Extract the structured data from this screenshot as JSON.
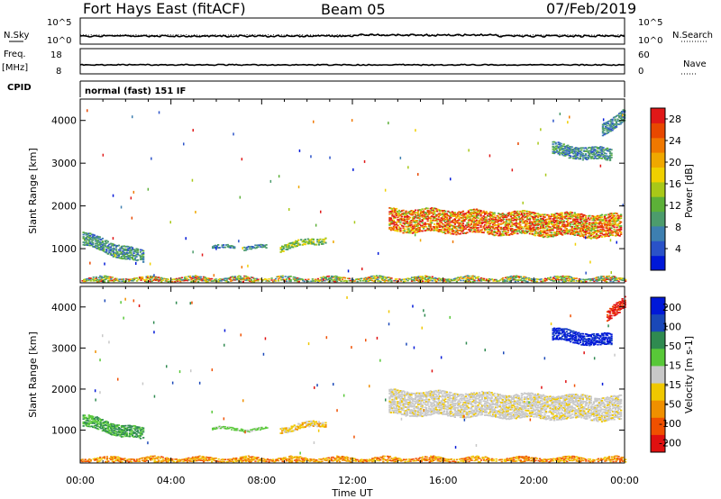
{
  "header": {
    "station": "Fort Hays East (fitACF)",
    "beam": "Beam 05",
    "date": "07/Feb/2019"
  },
  "noise_panel": {
    "left_label": "N.Sky",
    "right_label": "N.Search",
    "left_ticks": [
      "10^5",
      "10^0"
    ],
    "right_ticks": [
      "10^5",
      "10^0"
    ]
  },
  "freq_panel": {
    "left_label_top": "Freq.",
    "left_label_unit": "[MHz]",
    "right_label": "Nave",
    "left_ticks": [
      "18",
      "8"
    ],
    "right_ticks": [
      "60",
      "0"
    ]
  },
  "cpid": {
    "label": "CPID",
    "program": "normal (fast) 151 IF"
  },
  "time_axis": {
    "label": "Time UT",
    "ticks": [
      "00:00",
      "04:00",
      "08:00",
      "12:00",
      "16:00",
      "20:00",
      "00:00"
    ]
  },
  "chart_data": [
    {
      "type": "heatmap",
      "name": "power",
      "ylabel": "Slant Range [km]",
      "x_unit": "hours UT",
      "xlim": [
        0,
        24
      ],
      "ylim": [
        200,
        4500
      ],
      "yticks": [
        1000,
        2000,
        3000,
        4000
      ],
      "colorbar": {
        "label": "Power [dB]",
        "range": [
          0,
          30
        ],
        "ticks": [
          "4",
          "8",
          "12",
          "16",
          "20",
          "24",
          "28"
        ],
        "colors": [
          "#0018d8",
          "#2a52c8",
          "#3d7fb0",
          "#4c9c6c",
          "#5cb038",
          "#a8c818",
          "#f0d000",
          "#f0a800",
          "#f07800",
          "#e84800",
          "#e01818"
        ]
      },
      "echo_regions": [
        {
          "t_start": 0.1,
          "t_end": 2.8,
          "range_start": 1250,
          "range_end": 800,
          "thickness": 320,
          "level": "8-14 dB"
        },
        {
          "t_start": 5.8,
          "t_end": 6.8,
          "range_start": 1050,
          "range_end": 1050,
          "thickness": 90,
          "level": "8-12 dB"
        },
        {
          "t_start": 7.2,
          "t_end": 8.2,
          "range_start": 1050,
          "range_end": 1050,
          "thickness": 90,
          "level": "8-12 dB"
        },
        {
          "t_start": 8.8,
          "t_end": 10.8,
          "range_start": 1050,
          "range_end": 1250,
          "thickness": 150,
          "level": "12-18 dB"
        },
        {
          "t_start": 13.6,
          "t_end": 23.8,
          "range_start": 1700,
          "range_end": 1550,
          "thickness": 550,
          "level": "16-30 dB"
        },
        {
          "t_start": 0.0,
          "t_end": 24.0,
          "range_start": 280,
          "range_end": 280,
          "thickness": 160,
          "level": "12-28 dB"
        },
        {
          "t_start": 20.8,
          "t_end": 23.4,
          "range_start": 3350,
          "range_end": 3200,
          "thickness": 300,
          "level": "8-14 dB"
        },
        {
          "t_start": 23.0,
          "t_end": 24.0,
          "range_start": 3800,
          "range_end": 4200,
          "thickness": 300,
          "level": "8-12 dB"
        }
      ]
    },
    {
      "type": "heatmap",
      "name": "velocity",
      "ylabel": "Slant Range [km]",
      "x_unit": "hours UT",
      "xlim": [
        0,
        24
      ],
      "ylim": [
        200,
        4500
      ],
      "yticks": [
        1000,
        2000,
        3000,
        4000
      ],
      "colorbar": {
        "label": "Velocity [m s-1]",
        "ticks": [
          "200",
          "100",
          "50",
          "15",
          "-15",
          "-50",
          "-100",
          "-200"
        ],
        "colors": [
          "#0018d8",
          "#1a48b8",
          "#2f8a50",
          "#58c838",
          "#c8c8c8",
          "#f0c800",
          "#f09000",
          "#f05000",
          "#e01010"
        ]
      },
      "echo_regions": [
        {
          "t_start": 0.1,
          "t_end": 2.8,
          "range_start": 1250,
          "range_end": 900,
          "thickness": 300,
          "velocity": "50 to 100"
        },
        {
          "t_start": 5.8,
          "t_end": 8.2,
          "range_start": 1050,
          "range_end": 1050,
          "thickness": 80,
          "velocity": "15 to 50"
        },
        {
          "t_start": 8.8,
          "t_end": 10.8,
          "range_start": 1050,
          "range_end": 1200,
          "thickness": 150,
          "velocity": "-15 to -50"
        },
        {
          "t_start": 13.6,
          "t_end": 23.8,
          "range_start": 1700,
          "range_end": 1550,
          "thickness": 600,
          "velocity": "-15 to 15"
        },
        {
          "t_start": 0.0,
          "t_end": 24.0,
          "range_start": 280,
          "range_end": 280,
          "thickness": 170,
          "velocity": "-50 to -100"
        },
        {
          "t_start": 20.8,
          "t_end": 23.4,
          "range_start": 3350,
          "range_end": 3200,
          "thickness": 300,
          "velocity": "> 200"
        },
        {
          "t_start": 23.2,
          "t_end": 24.0,
          "range_start": 3800,
          "range_end": 4200,
          "thickness": 300,
          "velocity": "< -200"
        }
      ]
    }
  ]
}
